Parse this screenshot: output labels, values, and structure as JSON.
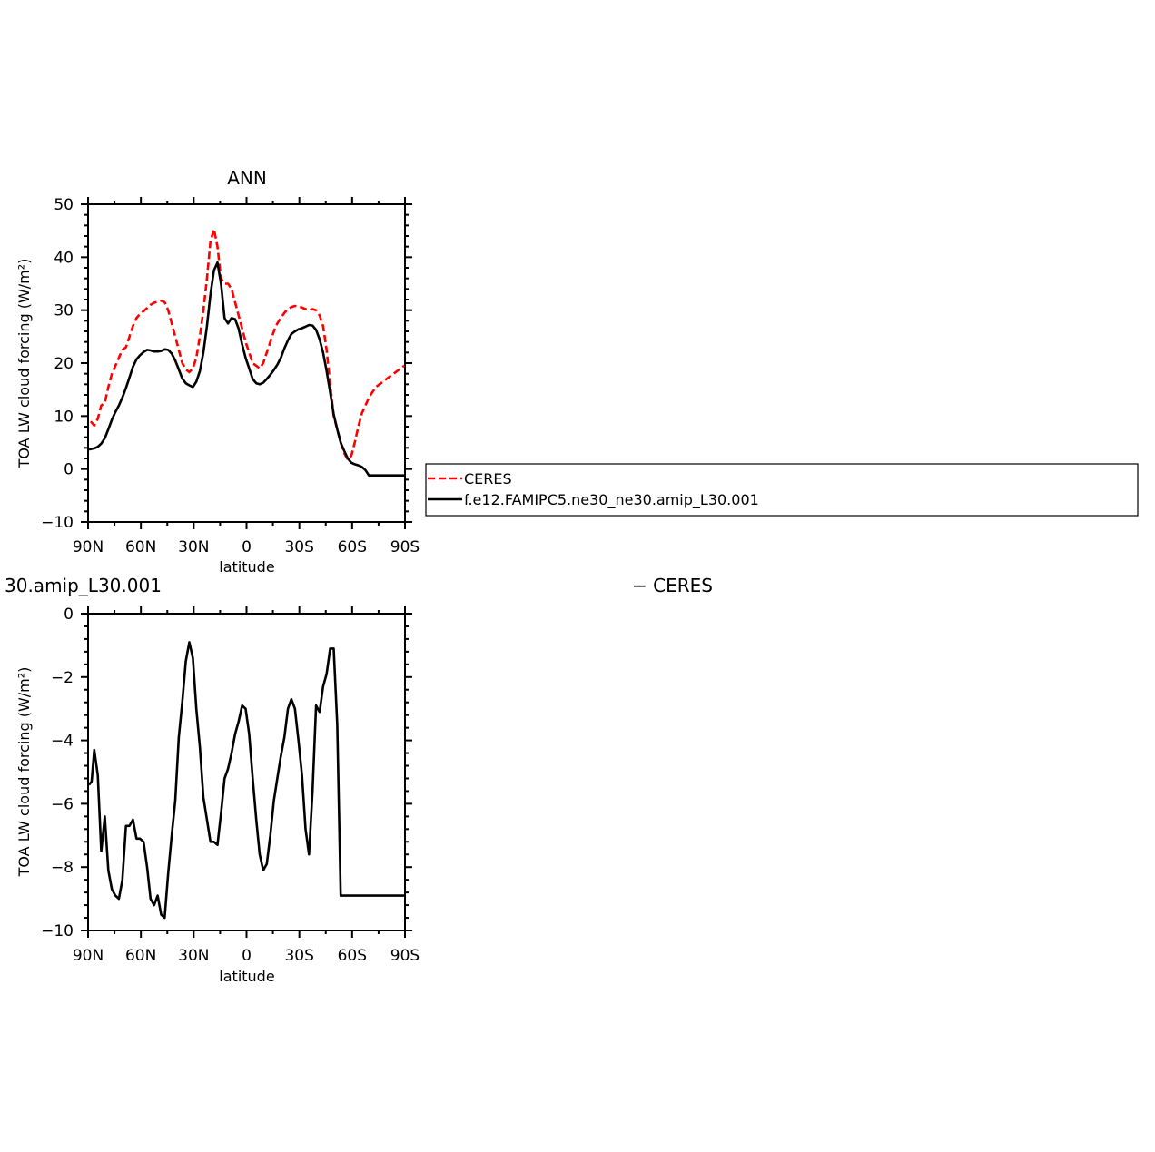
{
  "colors": {
    "model_line": "#000000",
    "obs_line": "#ff0000",
    "background": "#ffffff"
  },
  "legend": {
    "entries": [
      {
        "label": "CERES",
        "color": "#ff0000",
        "style": "dashed"
      },
      {
        "label": "f.e12.FAMIPC5.ne30_ne30.amip_L30.001",
        "color": "#000000",
        "style": "solid"
      }
    ]
  },
  "chart_data": [
    {
      "type": "line",
      "title": "ANN",
      "xlabel": "latitude",
      "ylabel": "TOA LW cloud forcing (W/m²)",
      "xlim": [
        90,
        -90
      ],
      "ylim": [
        -10,
        50
      ],
      "x_ticks": [
        90,
        60,
        30,
        0,
        -30,
        -60,
        -90
      ],
      "x_tick_labels": [
        "90N",
        "60N",
        "30N",
        "0",
        "30S",
        "60S",
        "90S"
      ],
      "y_ticks": [
        -10,
        0,
        10,
        20,
        30,
        40,
        50
      ],
      "y_tick_labels": [
        "−10",
        "0",
        "10",
        "20",
        "30",
        "40",
        "50"
      ],
      "grid": false,
      "legend_position": "right",
      "series": [
        {
          "name": "CERES",
          "style": "dashed",
          "color": "#ff0000",
          "x": [
            88.5,
            86.5,
            84.5,
            82.5,
            80.5,
            78.5,
            76.5,
            74.5,
            72.5,
            70.5,
            68.5,
            66.5,
            64.5,
            62.5,
            60.5,
            58.5,
            56.5,
            54.5,
            52.5,
            50.5,
            48.5,
            46.5,
            44.5,
            42.5,
            40.5,
            38.5,
            36.5,
            34.5,
            32.5,
            30.5,
            28.5,
            26.5,
            24.5,
            22.5,
            20.5,
            18.5,
            16.5,
            14.5,
            12.5,
            10.5,
            8.5,
            6.5,
            4.5,
            2.5,
            0.5,
            -1.5,
            -3.5,
            -5.5,
            -7.5,
            -9.5,
            -11.5,
            -13.5,
            -15.5,
            -17.5,
            -19.5,
            -21.5,
            -23.5,
            -25.5,
            -27.5,
            -29.5,
            -31.5,
            -33.5,
            -35.5,
            -37.5,
            -39.5,
            -41.5,
            -43.5,
            -45.5,
            -47.5,
            -49.5,
            -51.5,
            -53.5,
            -55.5,
            -57.5,
            -59.5,
            -61.5,
            -63.5,
            -65.5,
            -67.5,
            -69.5,
            -71.5,
            -73.5,
            -75.5,
            -77.5,
            -79.5,
            -81.5,
            -83.5,
            -85.5,
            -87.5,
            -89.5
          ],
          "values": [
            9.0,
            8.2,
            9.5,
            12.0,
            12.5,
            15.5,
            18.0,
            19.5,
            21.0,
            22.5,
            23.0,
            25.0,
            27.0,
            28.5,
            29.3,
            29.8,
            30.4,
            31.0,
            31.4,
            31.6,
            31.8,
            31.5,
            30.0,
            27.5,
            25.0,
            22.5,
            20.0,
            18.8,
            18.3,
            19.0,
            21.0,
            25.0,
            30.0,
            36.0,
            43.0,
            45.3,
            42.0,
            36.0,
            35.0,
            35.0,
            34.0,
            31.5,
            29.0,
            26.5,
            24.0,
            22.0,
            20.0,
            19.5,
            19.0,
            20.0,
            22.0,
            24.0,
            26.0,
            27.5,
            28.5,
            29.5,
            30.2,
            30.6,
            30.8,
            30.7,
            30.5,
            30.2,
            30.0,
            30.2,
            30.0,
            29.0,
            27.0,
            22.5,
            16.0,
            10.0,
            7.5,
            5.0,
            3.0,
            1.8,
            2.5,
            5.0,
            8.0,
            10.5,
            12.0,
            13.5,
            14.5,
            15.5,
            16.0,
            16.5,
            17.0,
            17.5,
            18.0,
            18.5,
            19.0,
            19.5
          ]
        },
        {
          "name": "f.e12.FAMIPC5.ne30_ne30.amip_L30.001",
          "style": "solid",
          "color": "#000000",
          "x": [
            89.5,
            86.5,
            84.5,
            82.5,
            80.5,
            78.5,
            76.5,
            74.5,
            72.5,
            70.5,
            68.5,
            66.5,
            64.5,
            62.5,
            60.5,
            58.5,
            56.5,
            54.5,
            52.5,
            50.5,
            48.5,
            46.5,
            44.5,
            42.5,
            40.5,
            38.5,
            36.5,
            34.5,
            32.5,
            30.5,
            28.5,
            26.5,
            24.5,
            22.5,
            20.5,
            18.5,
            16.5,
            14.5,
            12.5,
            10.5,
            8.5,
            6.5,
            4.5,
            2.5,
            0.5,
            -1.5,
            -3.5,
            -5.5,
            -7.5,
            -9.5,
            -11.5,
            -13.5,
            -15.5,
            -17.5,
            -19.5,
            -21.5,
            -23.5,
            -25.5,
            -27.5,
            -29.5,
            -31.5,
            -33.5,
            -35.5,
            -37.5,
            -39.5,
            -41.5,
            -43.5,
            -45.5,
            -47.5,
            -49.5,
            -51.5,
            -53.5,
            -55.5,
            -57.5,
            -59.5,
            -61.5,
            -63.5,
            -65.5,
            -67.5,
            -69.5,
            -71.5,
            -73.5,
            -75.5,
            -77.5,
            -79.5,
            -81.5,
            -83.5,
            -85.5,
            -87.5,
            -89.5
          ],
          "values": [
            3.7,
            3.9,
            4.2,
            4.8,
            5.8,
            7.5,
            9.3,
            10.8,
            12.0,
            13.5,
            15.3,
            17.3,
            19.3,
            20.7,
            21.5,
            22.1,
            22.5,
            22.4,
            22.2,
            22.2,
            22.3,
            22.6,
            22.5,
            21.8,
            20.5,
            18.8,
            17.1,
            16.2,
            15.8,
            15.5,
            16.5,
            18.5,
            22.0,
            27.0,
            33.0,
            37.5,
            39.0,
            35.0,
            28.5,
            27.5,
            28.5,
            28.3,
            26.5,
            23.5,
            21.0,
            19.0,
            17.0,
            16.2,
            16.0,
            16.3,
            17.0,
            17.8,
            18.7,
            19.7,
            21.0,
            22.8,
            24.3,
            25.5,
            26.0,
            26.4,
            26.6,
            26.9,
            27.2,
            27.1,
            26.3,
            24.5,
            22.0,
            18.5,
            14.5,
            10.3,
            7.5,
            5.0,
            3.4,
            2.0,
            1.2,
            0.9,
            0.7,
            0.4,
            -0.2,
            -1.2,
            -1.2,
            -1.2,
            -1.2,
            -1.2,
            -1.2,
            -1.2,
            -1.2,
            -1.2,
            -1.2,
            -1.2
          ]
        }
      ]
    },
    {
      "type": "line",
      "title_left": "30.amip_L30.001",
      "title_right": "− CERES",
      "xlabel": "latitude",
      "ylabel": "TOA LW cloud forcing (W/m²)",
      "xlim": [
        90,
        -90
      ],
      "ylim": [
        -10,
        0
      ],
      "x_ticks": [
        90,
        60,
        30,
        0,
        -30,
        -60,
        -90
      ],
      "x_tick_labels": [
        "90N",
        "60N",
        "30N",
        "0",
        "30S",
        "60S",
        "90S"
      ],
      "y_ticks": [
        -10,
        -8,
        -6,
        -4,
        -2,
        0
      ],
      "y_tick_labels": [
        "−10",
        "−8",
        "−6",
        "−4",
        "−2",
        "0"
      ],
      "grid": false,
      "series": [
        {
          "style": "solid",
          "color": "#000000",
          "x": [
            89.5,
            88.0,
            86.5,
            84.5,
            82.5,
            80.5,
            78.5,
            76.5,
            74.5,
            72.5,
            70.5,
            68.5,
            66.5,
            64.5,
            62.5,
            60.5,
            58.5,
            56.5,
            54.5,
            52.5,
            50.5,
            48.5,
            46.5,
            44.5,
            42.5,
            40.5,
            38.5,
            36.5,
            34.5,
            32.5,
            30.5,
            28.5,
            26.5,
            24.5,
            22.5,
            20.5,
            18.5,
            16.5,
            14.5,
            12.5,
            10.5,
            8.5,
            6.5,
            4.5,
            2.5,
            0.5,
            -1.5,
            -3.5,
            -5.5,
            -7.5,
            -9.5,
            -11.5,
            -13.5,
            -15.5,
            -17.5,
            -19.5,
            -21.5,
            -23.5,
            -25.5,
            -27.5,
            -29.5,
            -31.5,
            -33.5,
            -35.5,
            -37.5,
            -39.5,
            -41.5,
            -43.5,
            -45.5,
            -47.5,
            -49.5,
            -51.5,
            -53.5,
            -55.5,
            -57.5,
            -59.5,
            -61.5,
            -63.5,
            -65.5,
            -67.5,
            -69.5,
            -71.5,
            -73.5,
            -75.5,
            -77.5,
            -79.5,
            -81.5,
            -83.5,
            -85.5,
            -87.5,
            -89.5
          ],
          "values": [
            -5.4,
            -5.3,
            -4.3,
            -5.1,
            -7.5,
            -6.4,
            -8.1,
            -8.7,
            -8.9,
            -9.0,
            -8.4,
            -6.7,
            -6.7,
            -6.5,
            -7.1,
            -7.1,
            -7.2,
            -8.0,
            -9.0,
            -9.2,
            -8.9,
            -9.5,
            -9.6,
            -8.2,
            -7.0,
            -5.9,
            -3.9,
            -2.8,
            -1.5,
            -0.9,
            -1.4,
            -3.0,
            -4.2,
            -5.8,
            -6.5,
            -7.2,
            -7.2,
            -7.3,
            -6.3,
            -5.2,
            -4.9,
            -4.4,
            -3.8,
            -3.4,
            -2.9,
            -3.0,
            -3.8,
            -5.2,
            -6.5,
            -7.6,
            -8.1,
            -7.9,
            -7.0,
            -5.9,
            -5.2,
            -4.5,
            -3.9,
            -3.0,
            -2.7,
            -3.0,
            -4.0,
            -5.1,
            -6.8,
            -7.6,
            -5.6,
            -2.9,
            -3.1,
            -2.3,
            -1.9,
            -1.1,
            -1.1,
            -3.5,
            -8.9,
            -8.9,
            -8.9,
            -8.9,
            -8.9,
            -8.9,
            -8.9,
            -8.9,
            -8.9,
            -8.9,
            -8.9,
            -8.9,
            -8.9,
            -8.9,
            -8.9,
            -8.9,
            -8.9,
            -8.9,
            -8.9
          ]
        }
      ]
    }
  ]
}
